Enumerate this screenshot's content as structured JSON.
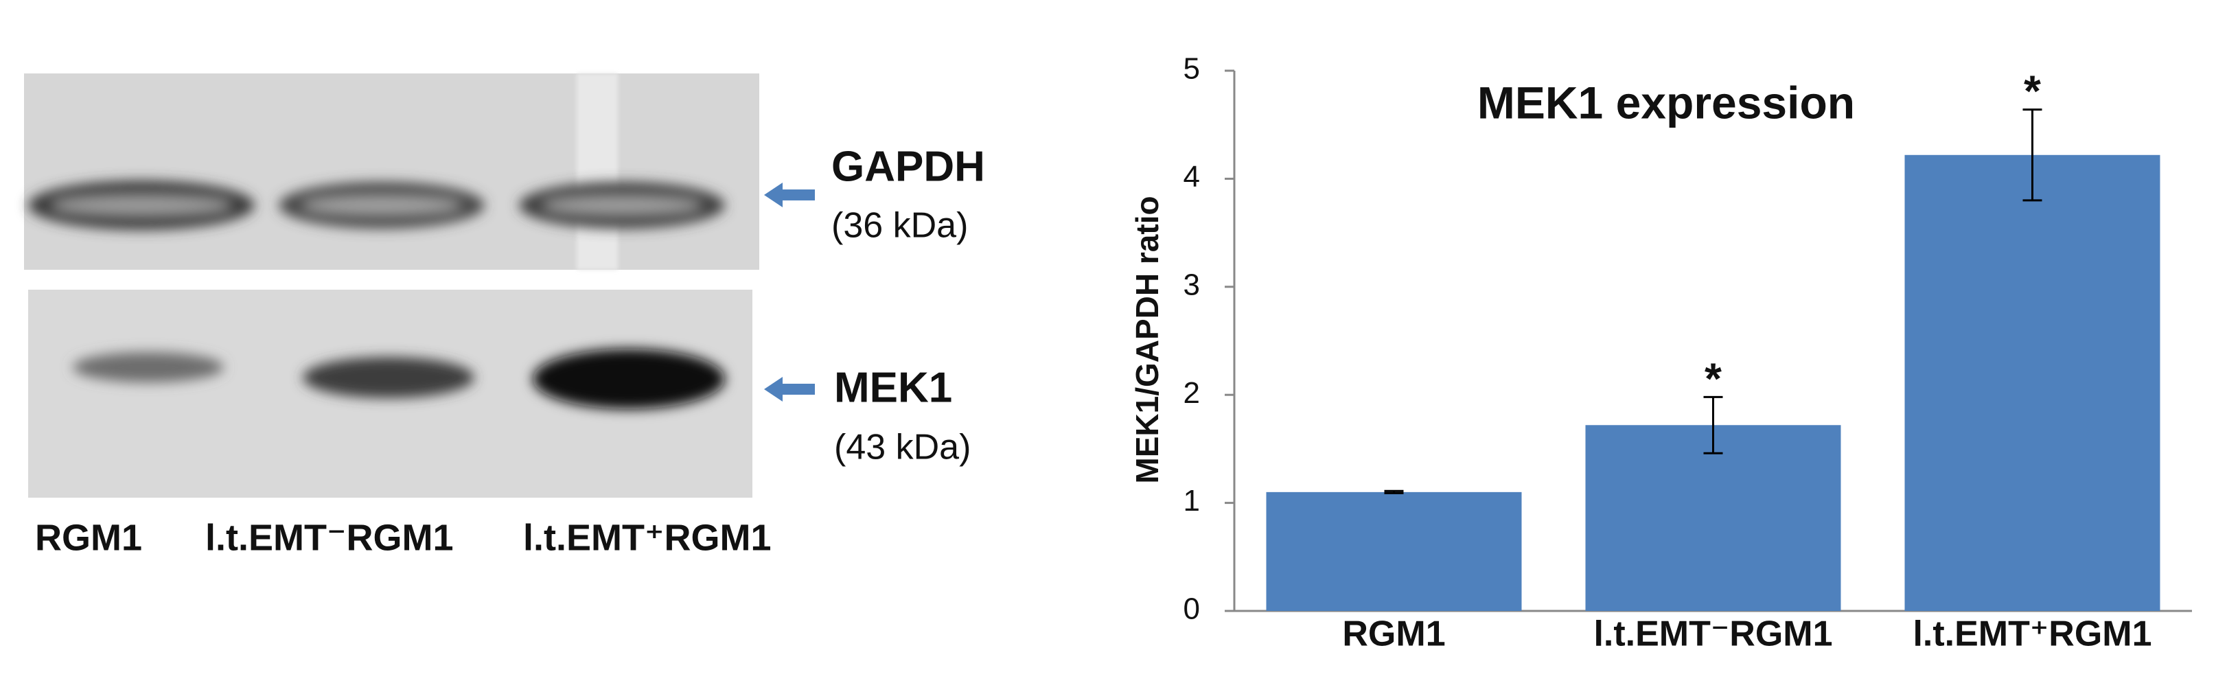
{
  "blot": {
    "bands": [
      {
        "name": "GAPDH",
        "size": "(36 kDa)"
      },
      {
        "name": "MEK1",
        "size": "(43 kDa)"
      }
    ],
    "lanes": [
      "RGM1",
      "l.t.EMT⁻RGM1",
      "l.t.EMT⁺RGM1"
    ]
  },
  "chart_data": {
    "type": "bar",
    "title": "MEK1 expression",
    "y_label": "MEK1/GAPDH ratio",
    "categories": [
      "RGM1",
      "l.t.EMT⁻RGM1",
      "l.t.EMT⁺RGM1"
    ],
    "values": [
      1.1,
      1.72,
      4.22
    ],
    "errors": [
      0.01,
      0.26,
      0.42
    ],
    "annotations": [
      null,
      "*",
      "*"
    ],
    "color": "#4f81bd",
    "ylim": [
      0,
      5
    ],
    "yticks": [
      0,
      1,
      2,
      3,
      4,
      5
    ]
  }
}
